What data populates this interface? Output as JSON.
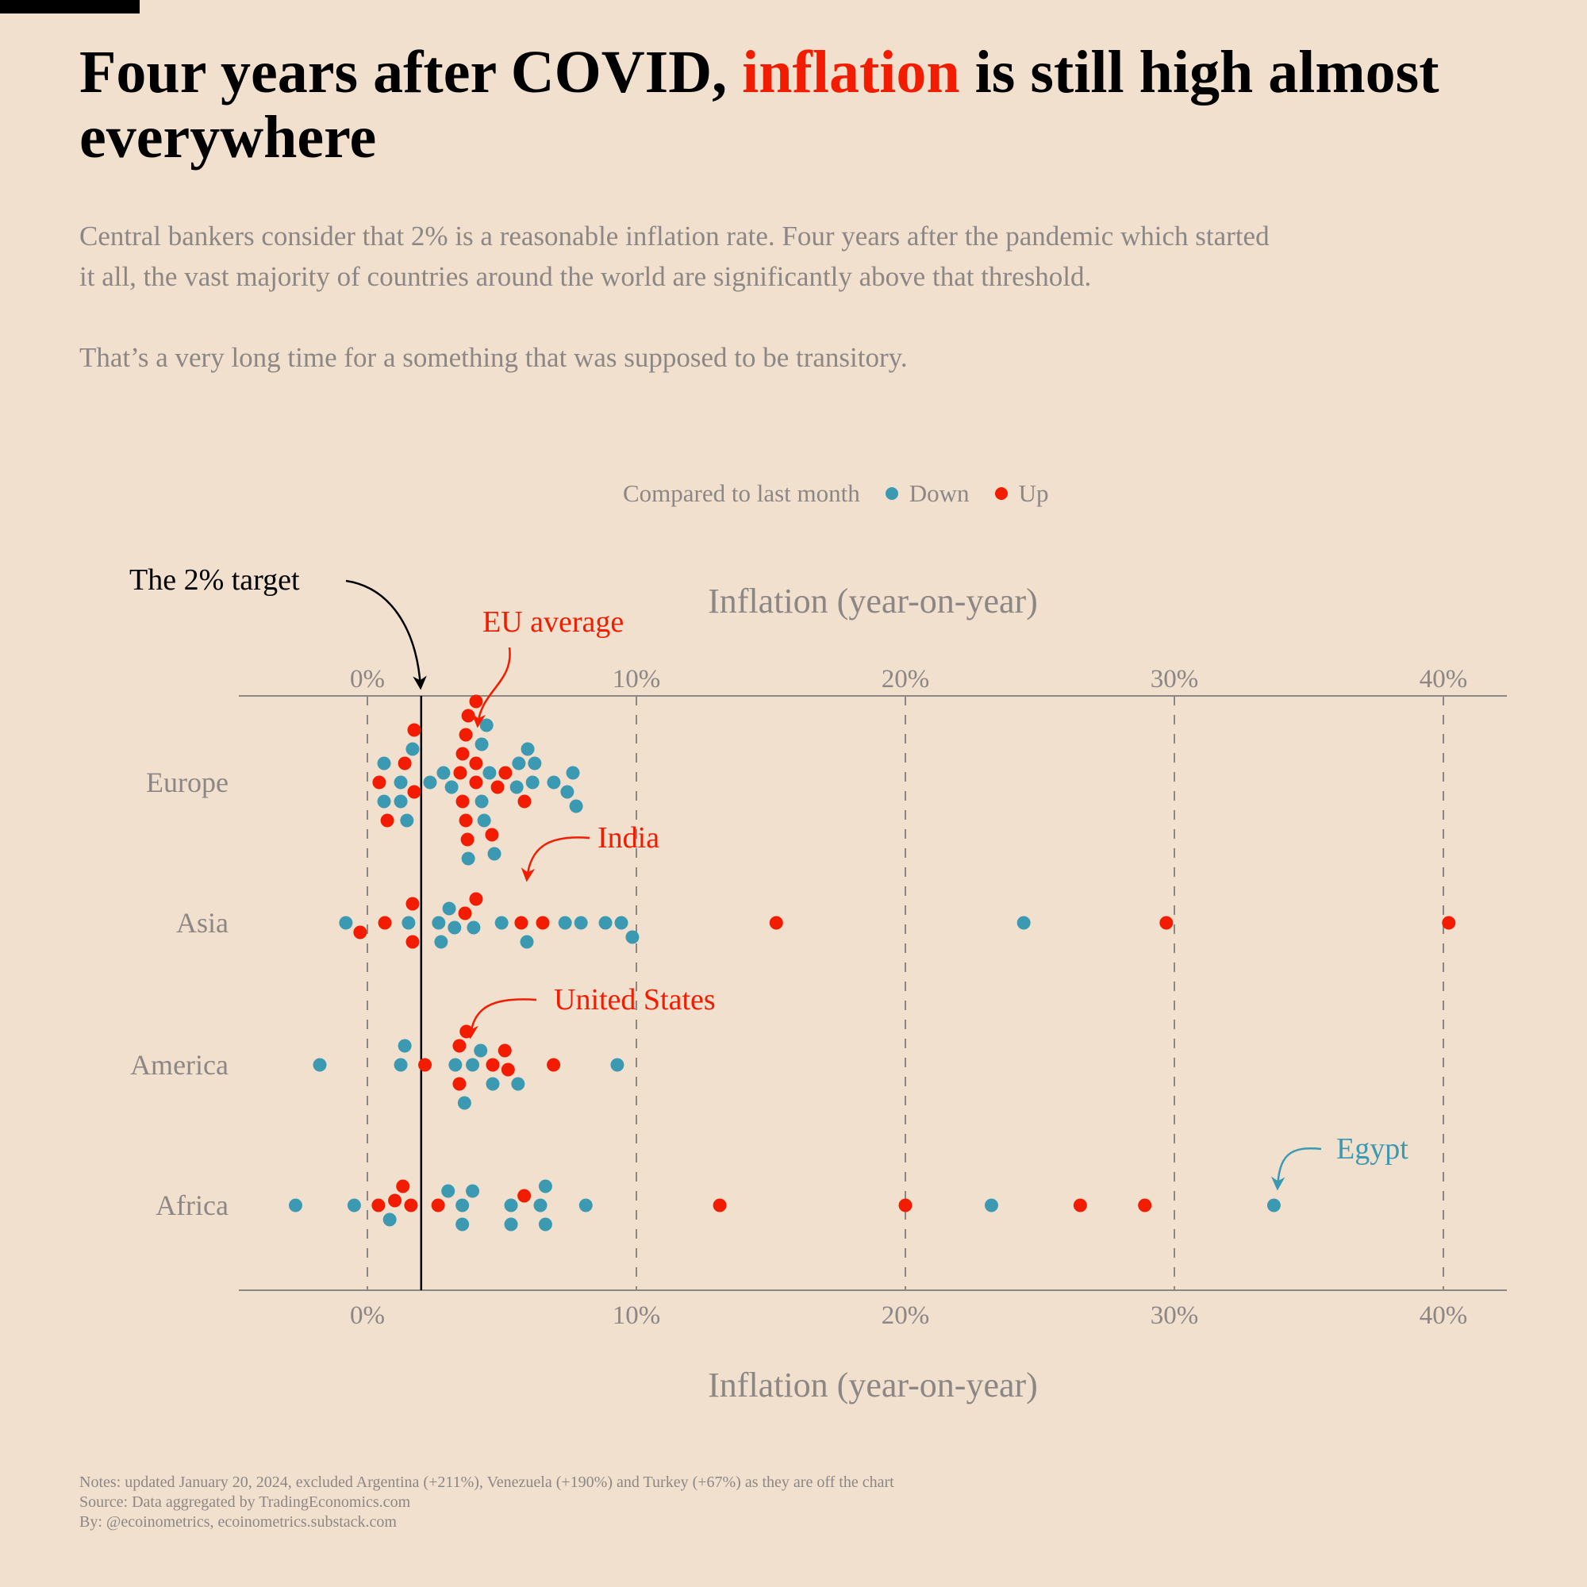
{
  "header": {
    "title_before": "Four years after COVID, ",
    "title_highlight": "inflation",
    "title_after": " is still high almost everywhere",
    "subtitle_p1": "Central bankers consider that 2% is a reasonable inflation rate. Four years after the pandemic which started it all, the vast majority of countries around the world are significantly above that threshold.",
    "subtitle_p2": "That’s a very long time for a something that was supposed to be transitory."
  },
  "legend": {
    "title": "Compared to last month",
    "down_label": "Down",
    "up_label": "Up"
  },
  "colors": {
    "background": "#f2e0cf",
    "up": "#f21c00",
    "down": "#3b9ab2",
    "target_line": "#000000",
    "grid": "#8c8784"
  },
  "chart_data": {
    "type": "scatter",
    "xlabel": "Inflation (year-on-year)",
    "xlim": [
      -4.8,
      42.3
    ],
    "xticks": [
      0,
      10,
      20,
      30,
      40
    ],
    "xtick_labels": [
      "0%",
      "10%",
      "20%",
      "30%",
      "40%"
    ],
    "target": 2,
    "grid": "vertical dashed",
    "categories": [
      "Europe",
      "Asia",
      "America",
      "Africa"
    ],
    "series": [
      {
        "region": "Europe",
        "up": [
          4.04,
          3.45,
          4.63,
          3.66,
          1.39,
          3.72,
          1.74,
          4.04,
          5.84,
          0.44,
          3.54,
          4.84,
          1.74,
          5.13,
          0.74,
          3.66,
          3.75,
          3.54,
          4.04
        ],
        "down": [
          4.25,
          4.43,
          0.62,
          1.24,
          1.68,
          5.55,
          6.14,
          2.83,
          3.13,
          1.24,
          0.62,
          2.33,
          3.75,
          4.54,
          4.25,
          5.96,
          5.63,
          6.22,
          1.47,
          4.34,
          4.72,
          6.93,
          7.64,
          7.43,
          7.76
        ]
      },
      {
        "region": "Asia",
        "up": [
          0.65,
          -0.27,
          1.68,
          1.68,
          3.63,
          4.04,
          5.72,
          6.52,
          15.2,
          29.7,
          40.2
        ],
        "down": [
          -0.8,
          2.65,
          3.04,
          4.99,
          3.24,
          3.95,
          1.53,
          2.74,
          5.93,
          7.35,
          7.94,
          8.85,
          9.44,
          9.85,
          24.4
        ]
      },
      {
        "region": "America",
        "up": [
          2.14,
          3.42,
          3.68,
          5.23,
          4.66,
          5.11,
          3.42,
          6.92
        ],
        "down": [
          -1.77,
          1.39,
          1.24,
          4.21,
          3.27,
          3.91,
          4.66,
          5.6,
          9.29,
          3.61
        ]
      },
      {
        "region": "Africa",
        "up": [
          0.41,
          1.02,
          1.62,
          1.32,
          2.63,
          5.83,
          13.1,
          20.0,
          26.5,
          28.9
        ],
        "down": [
          -2.67,
          -0.49,
          0.83,
          3.0,
          3.53,
          3.53,
          3.91,
          5.34,
          5.34,
          6.62,
          6.62,
          6.43,
          8.12,
          23.2,
          33.7
        ]
      }
    ],
    "annotations": [
      {
        "label": "The 2% target",
        "value": 2
      },
      {
        "label": "EU average",
        "value": 4.04,
        "region": "Europe"
      },
      {
        "label": "India",
        "value": 5.72,
        "region": "Asia"
      },
      {
        "label": "United States",
        "value": 3.68,
        "region": "America"
      },
      {
        "label": "Egypt",
        "value": 33.7,
        "region": "Africa"
      }
    ]
  },
  "notes": {
    "line1": "Notes: updated January 20, 2024, excluded Argentina (+211%), Venezuela (+190%) and Turkey (+67%) as they are off the chart",
    "line2": "Source: Data aggregated by TradingEconomics.com",
    "line3": "By: @ecoinometrics, ecoinometrics.substack.com"
  }
}
